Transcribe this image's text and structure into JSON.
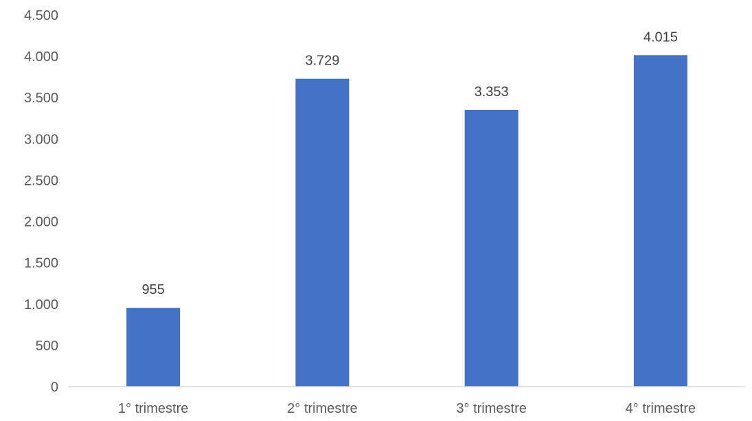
{
  "chart_data": {
    "type": "bar",
    "categories": [
      "1° trimestre",
      "2° trimestre",
      "3° trimestre",
      "4° trimestre"
    ],
    "values": [
      955,
      3729,
      3353,
      4015
    ],
    "data_labels": [
      "955",
      "3.729",
      "3.353",
      "4.015"
    ],
    "ylim": [
      0,
      4500
    ],
    "yticks": [
      0,
      500,
      1000,
      1500,
      2000,
      2500,
      3000,
      3500,
      4000,
      4500
    ],
    "ytick_labels": [
      "0",
      "500",
      "1.000",
      "1.500",
      "2.000",
      "2.500",
      "3.000",
      "3.500",
      "4.000",
      "4.500"
    ],
    "grid": false,
    "legend": "none",
    "bar_color": "#4472C4"
  }
}
